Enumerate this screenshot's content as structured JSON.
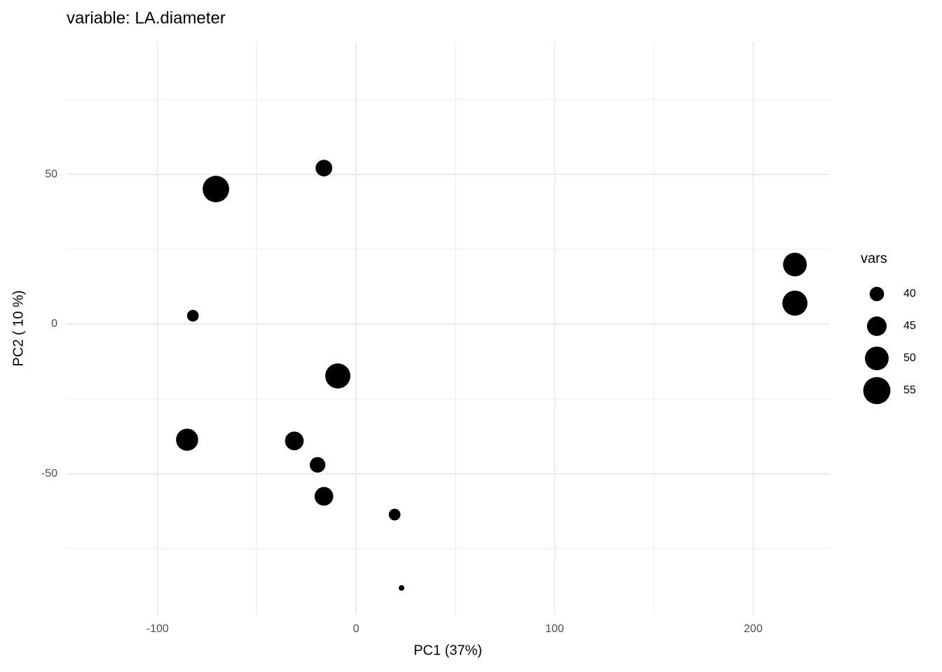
{
  "chart_data": {
    "type": "bubble",
    "title": "variable: LA.diameter",
    "x_label": "PC1 (37%)",
    "y_label": "PC2 ( 10 %)",
    "x": [
      -16.2,
      -70.6,
      -82.2,
      -9.2,
      -85.1,
      -31.1,
      -19.4,
      -16.2,
      19.4,
      22.9,
      221.0,
      221.0
    ],
    "values": [
      52.1,
      45.1,
      2.8,
      -17.3,
      -38.6,
      -39.0,
      -47.0,
      -57.5,
      -63.6,
      -88.1,
      19.9,
      7.0
    ],
    "sizes": [
      42,
      54,
      38,
      52,
      48,
      44,
      41,
      44,
      38,
      35,
      50,
      52
    ],
    "color": "#000000",
    "xlim": [
      -145.8,
      238.6
    ],
    "ylim": [
      -97.0,
      94.2
    ],
    "xticks": [
      -100,
      0,
      100,
      200
    ],
    "yticks": [
      -50,
      0,
      50
    ],
    "grid": true,
    "minor_grid": true,
    "size_legend": {
      "title": "vars",
      "values": [
        40,
        45,
        50,
        55
      ]
    }
  }
}
